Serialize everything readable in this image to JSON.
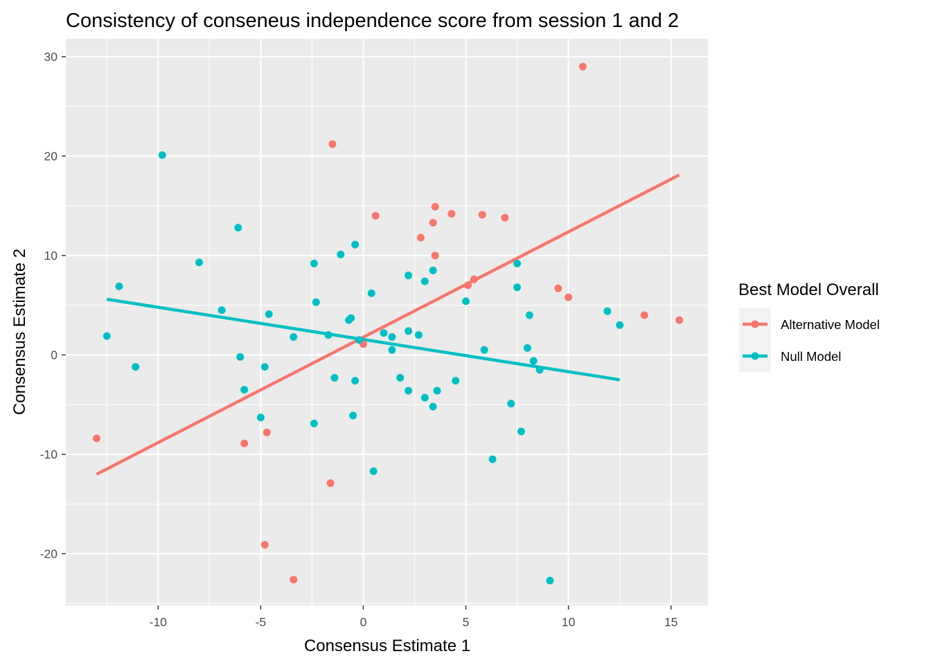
{
  "chart_data": {
    "type": "scatter",
    "title": "Consistency of conseneus independence score from session 1 and 2",
    "xlabel": "Consensus Estimate 1",
    "ylabel": "Consensus Estimate 2",
    "xlim": [
      -14.5,
      16.8
    ],
    "ylim": [
      -25.2,
      31.8
    ],
    "x_ticks": [
      -10,
      -5,
      0,
      5,
      10,
      15
    ],
    "x_tick_labels": [
      "-10",
      "-5",
      "0",
      "5",
      "10",
      "15"
    ],
    "y_ticks": [
      -20,
      -10,
      0,
      10,
      20,
      30
    ],
    "y_tick_labels": [
      "-20",
      "-10",
      "0",
      "10",
      "20",
      "30"
    ],
    "grid": true,
    "legend": {
      "title": "Best Model Overall",
      "position": "right"
    },
    "series": [
      {
        "name": "Alternative Model",
        "color": "#F8766D",
        "points": [
          [
            10.7,
            29.0
          ],
          [
            -1.5,
            21.2
          ],
          [
            3.5,
            14.9
          ],
          [
            0.6,
            14.0
          ],
          [
            4.3,
            14.2
          ],
          [
            5.8,
            14.1
          ],
          [
            6.9,
            13.8
          ],
          [
            3.4,
            13.3
          ],
          [
            2.8,
            11.8
          ],
          [
            3.5,
            10.0
          ],
          [
            5.4,
            7.6
          ],
          [
            5.1,
            7.0
          ],
          [
            9.5,
            6.7
          ],
          [
            10.0,
            5.8
          ],
          [
            13.7,
            4.0
          ],
          [
            15.4,
            3.5
          ],
          [
            0.0,
            1.1
          ],
          [
            -13.0,
            -8.4
          ],
          [
            -5.8,
            -8.9
          ],
          [
            -4.7,
            -7.8
          ],
          [
            -1.6,
            -12.9
          ],
          [
            -4.8,
            -19.1
          ],
          [
            -3.4,
            -22.6
          ]
        ],
        "trend": {
          "x": [
            -13.0,
            15.4
          ],
          "y": [
            -12.0,
            18.1
          ]
        }
      },
      {
        "name": "Null Model",
        "color": "#00BFC4",
        "points": [
          [
            -9.8,
            20.1
          ],
          [
            -6.1,
            12.8
          ],
          [
            -8.0,
            9.3
          ],
          [
            -11.9,
            6.9
          ],
          [
            -12.5,
            1.9
          ],
          [
            -11.1,
            -1.2
          ],
          [
            -6.9,
            4.5
          ],
          [
            -6.0,
            -0.2
          ],
          [
            -5.8,
            -3.5
          ],
          [
            -4.8,
            -1.2
          ],
          [
            -5.0,
            -6.3
          ],
          [
            -4.6,
            4.1
          ],
          [
            -3.4,
            1.8
          ],
          [
            -2.4,
            9.2
          ],
          [
            -2.3,
            5.3
          ],
          [
            -2.4,
            -6.9
          ],
          [
            -1.7,
            2.0
          ],
          [
            -1.4,
            -2.3
          ],
          [
            -1.1,
            10.1
          ],
          [
            -0.4,
            11.1
          ],
          [
            -0.7,
            3.5
          ],
          [
            -0.6,
            3.7
          ],
          [
            -0.5,
            -6.1
          ],
          [
            -0.4,
            -2.6
          ],
          [
            -0.2,
            1.5
          ],
          [
            0.4,
            6.2
          ],
          [
            0.5,
            -11.7
          ],
          [
            1.0,
            2.2
          ],
          [
            1.4,
            1.8
          ],
          [
            1.4,
            0.5
          ],
          [
            1.8,
            -2.3
          ],
          [
            2.2,
            8.0
          ],
          [
            2.2,
            2.4
          ],
          [
            2.2,
            -3.6
          ],
          [
            2.7,
            2.0
          ],
          [
            3.0,
            7.4
          ],
          [
            3.0,
            -4.3
          ],
          [
            3.4,
            8.5
          ],
          [
            3.4,
            -5.2
          ],
          [
            3.6,
            -3.6
          ],
          [
            4.5,
            -2.6
          ],
          [
            5.0,
            5.4
          ],
          [
            5.9,
            0.5
          ],
          [
            6.3,
            -10.5
          ],
          [
            7.2,
            -4.9
          ],
          [
            7.5,
            9.2
          ],
          [
            7.5,
            6.8
          ],
          [
            8.1,
            4.0
          ],
          [
            8.0,
            0.7
          ],
          [
            8.3,
            -0.6
          ],
          [
            8.6,
            -1.5
          ],
          [
            7.7,
            -7.7
          ],
          [
            9.1,
            -22.7
          ],
          [
            11.9,
            4.4
          ],
          [
            12.5,
            3.0
          ]
        ],
        "trend": {
          "x": [
            -12.5,
            12.5
          ],
          "y": [
            5.6,
            -2.5
          ]
        }
      }
    ]
  }
}
